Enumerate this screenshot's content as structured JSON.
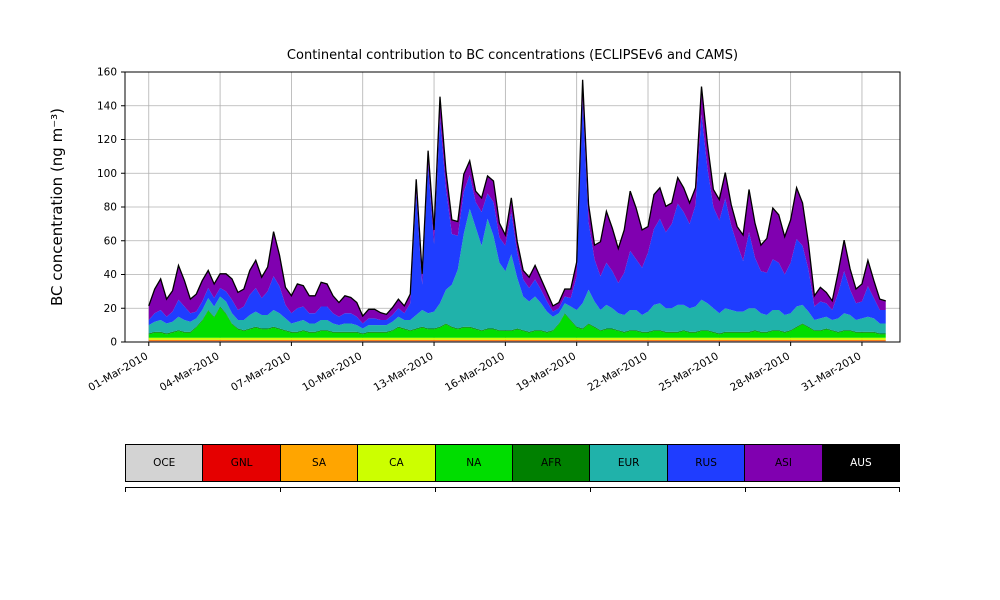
{
  "chart": {
    "title": "Continental contribution to BC concentrations (ECLIPSEv6 and CAMS)",
    "ylabel": "BC concentration (ng m⁻³)",
    "yticks": [
      0,
      20,
      40,
      60,
      80,
      100,
      120,
      140,
      160
    ]
  },
  "chart_data": {
    "type": "area",
    "stacked": true,
    "title": "Continental contribution to BC concentrations (ECLIPSEv6 and CAMS)",
    "xlabel": "",
    "ylabel": "BC concentration (ng m⁻³)",
    "ylim": [
      0,
      160
    ],
    "x_start": "01-Mar-2010 00:00",
    "x_step_days": 0.25,
    "axis": {
      "xmin_days": -1.0,
      "xmax_days": 31.6,
      "grid": true,
      "grid_color": "#b0b0b0"
    },
    "xticks": {
      "days": [
        0,
        3,
        6,
        9,
        12,
        15,
        18,
        21,
        24,
        27,
        30
      ],
      "labels": [
        "01-Mar-2010",
        "04-Mar-2010",
        "07-Mar-2010",
        "10-Mar-2010",
        "13-Mar-2010",
        "16-Mar-2010",
        "19-Mar-2010",
        "22-Mar-2010",
        "25-Mar-2010",
        "28-Mar-2010",
        "31-Mar-2010"
      ]
    },
    "outline_color": "#000000",
    "series": [
      {
        "name": "OCE",
        "color": "#d3d3d3",
        "constant": 0.5
      },
      {
        "name": "GNL",
        "color": "#e50000",
        "constant": 0.3
      },
      {
        "name": "SA",
        "color": "#ffa500",
        "constant": 0.5
      },
      {
        "name": "CA",
        "color": "#ccff00",
        "constant": 1.2
      },
      {
        "name": "NA",
        "color": "#00dd00",
        "values": [
          2,
          3,
          3,
          2,
          3,
          4,
          3,
          3,
          6,
          10,
          16,
          12,
          18,
          14,
          8,
          5,
          4,
          5,
          6,
          5,
          5,
          6,
          5,
          4,
          3,
          3,
          4,
          3,
          3,
          4,
          4,
          3,
          3,
          3,
          3,
          3,
          2,
          3,
          3,
          3,
          3,
          4,
          6,
          5,
          4,
          5,
          6,
          5,
          5,
          6,
          8,
          6,
          5,
          6,
          6,
          5,
          4,
          5,
          5,
          4,
          4,
          4,
          5,
          4,
          3,
          4,
          4,
          3,
          4,
          8,
          14,
          10,
          6,
          5,
          8,
          6,
          4,
          5,
          5,
          4,
          3,
          4,
          4,
          3,
          3,
          4,
          4,
          3,
          3,
          3,
          4,
          3,
          3,
          4,
          4,
          3,
          2,
          3,
          3,
          3,
          3,
          3,
          4,
          3,
          3,
          4,
          4,
          3,
          4,
          6,
          8,
          6,
          4,
          4,
          5,
          4,
          3,
          4,
          4,
          3,
          3,
          3,
          3,
          2,
          2
        ]
      },
      {
        "name": "AFR",
        "color": "#008000",
        "constant": 0.5
      },
      {
        "name": "EUR",
        "color": "#20b2aa",
        "values": [
          5,
          6,
          7,
          6,
          6,
          8,
          7,
          6,
          5,
          6,
          7,
          6,
          6,
          7,
          6,
          5,
          6,
          8,
          9,
          8,
          8,
          10,
          9,
          7,
          5,
          6,
          6,
          5,
          5,
          6,
          6,
          5,
          4,
          5,
          5,
          4,
          3,
          4,
          4,
          4,
          4,
          5,
          6,
          5,
          6,
          8,
          10,
          9,
          10,
          14,
          20,
          25,
          35,
          55,
          70,
          60,
          50,
          65,
          55,
          40,
          35,
          45,
          30,
          20,
          18,
          20,
          16,
          12,
          8,
          6,
          6,
          8,
          10,
          15,
          20,
          15,
          12,
          14,
          12,
          10,
          10,
          12,
          12,
          10,
          12,
          15,
          16,
          14,
          14,
          16,
          15,
          14,
          15,
          18,
          16,
          14,
          12,
          14,
          13,
          12,
          12,
          14,
          13,
          11,
          10,
          12,
          12,
          10,
          10,
          12,
          11,
          9,
          6,
          7,
          7,
          6,
          8,
          10,
          9,
          7,
          8,
          9,
          8,
          6,
          6
        ]
      },
      {
        "name": "RUS",
        "color": "#1f3dff",
        "values": [
          3,
          5,
          6,
          4,
          6,
          10,
          8,
          5,
          4,
          5,
          6,
          5,
          5,
          6,
          8,
          6,
          8,
          12,
          14,
          10,
          14,
          20,
          16,
          8,
          6,
          8,
          8,
          6,
          6,
          8,
          8,
          6,
          5,
          6,
          6,
          5,
          3,
          4,
          4,
          3,
          3,
          4,
          5,
          4,
          10,
          72,
          15,
          88,
          40,
          110,
          60,
          30,
          20,
          25,
          20,
          15,
          20,
          15,
          20,
          15,
          15,
          25,
          15,
          10,
          8,
          10,
          8,
          6,
          3,
          3,
          4,
          5,
          20,
          120,
          40,
          25,
          20,
          25,
          22,
          18,
          25,
          35,
          30,
          28,
          35,
          45,
          50,
          45,
          50,
          60,
          55,
          50,
          60,
          110,
          80,
          60,
          55,
          65,
          50,
          40,
          30,
          45,
          30,
          25,
          25,
          30,
          28,
          24,
          30,
          40,
          35,
          25,
          8,
          10,
          8,
          6,
          15,
          25,
          15,
          10,
          10,
          18,
          12,
          8,
          8
        ]
      },
      {
        "name": "ASI",
        "color": "#8000b0",
        "values": [
          8,
          14,
          18,
          10,
          12,
          20,
          15,
          8,
          10,
          12,
          10,
          8,
          8,
          10,
          12,
          10,
          10,
          14,
          16,
          12,
          14,
          26,
          18,
          10,
          10,
          14,
          12,
          10,
          10,
          14,
          13,
          10,
          8,
          10,
          9,
          8,
          4,
          5,
          5,
          4,
          3,
          4,
          5,
          4,
          5,
          8,
          6,
          8,
          8,
          12,
          10,
          8,
          8,
          10,
          8,
          6,
          8,
          10,
          12,
          8,
          6,
          8,
          6,
          5,
          6,
          8,
          6,
          5,
          3,
          3,
          4,
          5,
          8,
          12,
          10,
          8,
          20,
          30,
          25,
          20,
          25,
          35,
          30,
          22,
          15,
          20,
          18,
          15,
          12,
          15,
          14,
          12,
          10,
          16,
          14,
          10,
          12,
          15,
          12,
          10,
          15,
          25,
          20,
          15,
          20,
          30,
          28,
          22,
          25,
          30,
          25,
          15,
          6,
          8,
          6,
          5,
          12,
          18,
          12,
          8,
          10,
          15,
          10,
          6,
          5
        ]
      },
      {
        "name": "AUS",
        "color": "#000000",
        "constant": 0.4
      }
    ]
  },
  "legend": {
    "items": [
      {
        "label": "OCE",
        "color": "#d3d3d3",
        "text_color": "#000000"
      },
      {
        "label": "GNL",
        "color": "#e50000",
        "text_color": "#000000"
      },
      {
        "label": "SA",
        "color": "#ffa500",
        "text_color": "#000000"
      },
      {
        "label": "CA",
        "color": "#ccff00",
        "text_color": "#000000"
      },
      {
        "label": "NA",
        "color": "#00dd00",
        "text_color": "#000000"
      },
      {
        "label": "AFR",
        "color": "#008000",
        "text_color": "#000000"
      },
      {
        "label": "EUR",
        "color": "#20b2aa",
        "text_color": "#000000"
      },
      {
        "label": "RUS",
        "color": "#1f3dff",
        "text_color": "#000000"
      },
      {
        "label": "ASI",
        "color": "#8000b0",
        "text_color": "#000000"
      },
      {
        "label": "AUS",
        "color": "#000000",
        "text_color": "#ffffff"
      }
    ]
  }
}
